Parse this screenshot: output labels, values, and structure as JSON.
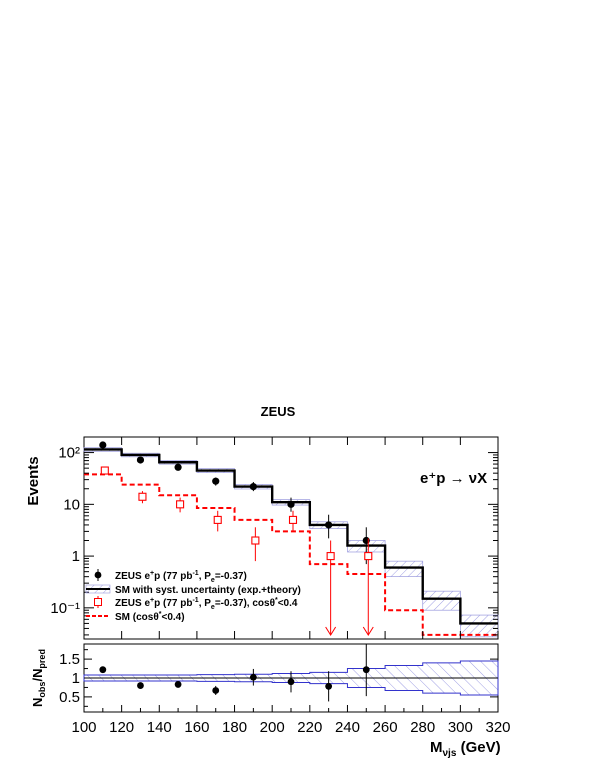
{
  "title": "ZEUS",
  "process_label": "e⁺p → νX",
  "chart_data": [
    {
      "type": "line",
      "panel": "upper",
      "ylabel": "Events",
      "yscale": "log",
      "ylim": [
        0.025,
        200
      ],
      "xlim": [
        100,
        320
      ],
      "y_tick_labels": [
        "10⁻¹",
        "1",
        "10",
        "10²"
      ],
      "y_tick_values": [
        0.1,
        1,
        10,
        100
      ],
      "bin_edges": [
        100,
        120,
        140,
        160,
        180,
        200,
        220,
        240,
        260,
        280,
        300,
        320
      ],
      "series": [
        {
          "name": "ZEUS e⁺p (77 pb⁻¹, Pₑ=-0.37)",
          "style": "data-filled",
          "x": [
            110,
            130,
            150,
            170,
            190,
            210,
            230,
            250
          ],
          "y": [
            140,
            72,
            52,
            28,
            22,
            10,
            4,
            2
          ],
          "err_low": [
            12,
            8,
            7,
            5,
            4,
            2.8,
            1.8,
            1.3
          ],
          "err_high": [
            12,
            8,
            7,
            5,
            5,
            3.5,
            2.3,
            1.6
          ]
        },
        {
          "name": "SM with syst. uncertainty (exp.+theory)",
          "style": "hist-solid",
          "values": [
            115,
            90,
            65,
            45,
            22,
            11,
            4,
            1.6,
            0.6,
            0.15,
            0.05
          ]
        },
        {
          "name": "ZEUS e⁺p (77 pb⁻¹, Pₑ=-0.37), cosθ*<0.4",
          "style": "data-open",
          "x": [
            110,
            130,
            150,
            170,
            190,
            210,
            230,
            250
          ],
          "y": [
            45,
            14,
            10,
            5,
            2,
            5,
            1,
            1
          ],
          "err_low": [
            6,
            3.5,
            3,
            2,
            1.2,
            2,
            0.98,
            0.98
          ],
          "err_high": [
            6,
            4,
            3.5,
            2.5,
            1.6,
            2.5,
            1,
            1.2
          ],
          "upper_limit_arrows": [
            230,
            250
          ]
        },
        {
          "name": "SM (cosθ*<0.4)",
          "style": "hist-dashed",
          "values": [
            38,
            24,
            15,
            8.5,
            5,
            3,
            0.7,
            0.45,
            0.09,
            0.03,
            0.03
          ]
        }
      ]
    },
    {
      "type": "scatter",
      "panel": "lower",
      "ylabel": "N_obs/N_pred",
      "xlabel": "M_νjs (GeV)",
      "xlim": [
        100,
        320
      ],
      "ylim": [
        0.1,
        1.9
      ],
      "x_tick_labels": [
        "100",
        "120",
        "140",
        "160",
        "180",
        "200",
        "220",
        "240",
        "260",
        "280",
        "300",
        "320"
      ],
      "y_tick_labels": [
        "0.5",
        "1",
        "1.5"
      ],
      "ratio": {
        "x": [
          110,
          130,
          150,
          170,
          190,
          210,
          230,
          250
        ],
        "y": [
          1.22,
          0.8,
          0.83,
          0.67,
          1.02,
          0.9,
          0.78,
          1.22
        ],
        "err": [
          0.08,
          0.08,
          0.08,
          0.12,
          0.22,
          0.28,
          0.4,
          0.7
        ]
      },
      "band_halfwidth": [
        0.08,
        0.08,
        0.08,
        0.09,
        0.1,
        0.12,
        0.15,
        0.25,
        0.33,
        0.4,
        0.45
      ]
    }
  ],
  "legend": [
    {
      "pre": "ZEUS e",
      "sup1": "+",
      "mid": "p (77 pb",
      "sup2": "-1",
      "mid2": ", P",
      "sub": "e",
      "post": "=-0.37)"
    },
    {
      "pre": "SM with syst. uncertainty (exp.+theory)"
    },
    {
      "pre": "ZEUS e",
      "sup1": "+",
      "mid": "p (77 pb",
      "sup2": "-1",
      "mid2": ", P",
      "sub": "e",
      "post": "=-0.37), cosθ",
      "sup3": "*",
      "post2": "<0.4"
    },
    {
      "pre": "SM (cosθ",
      "sup3": "*",
      "post2": "<0.4)"
    }
  ],
  "colors": {
    "data": "#000000",
    "sm": "#000000",
    "cut_data": "#ff0000",
    "cut_sm": "#ff0000",
    "band": "#3333cc"
  }
}
